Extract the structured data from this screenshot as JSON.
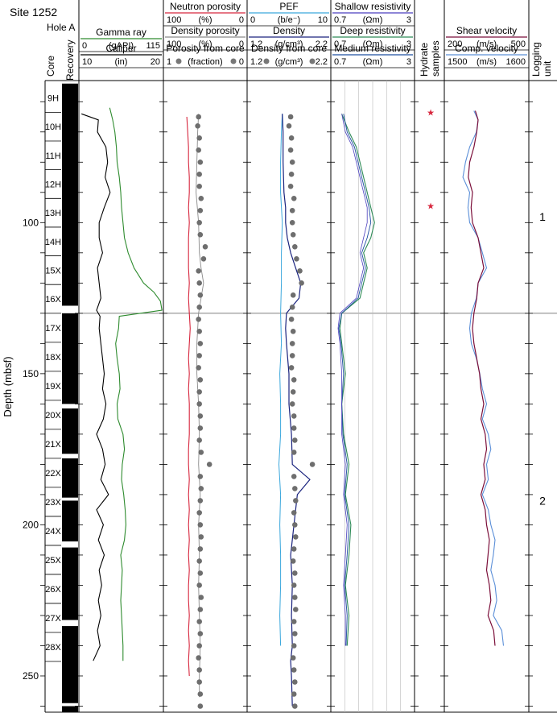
{
  "header": {
    "site": "Site 1252",
    "hole": "Hole A"
  },
  "columns": {
    "core": "Core",
    "recovery": "Recovery",
    "hydrate": [
      "Hydrate",
      "samples"
    ],
    "logging_unit": [
      "Logging",
      "unit"
    ]
  },
  "depth_axis": {
    "label": "Depth (mbsf)",
    "range": [
      53,
      262
    ],
    "ticks": [
      100,
      150,
      200,
      250
    ],
    "minor_step": 10
  },
  "track_headers": {
    "gamma": {
      "title": "Gamma ray",
      "unit": "(gAPI)",
      "min": "0",
      "max": "115",
      "color": "#2e8b2e"
    },
    "caliper": {
      "title": "Caliper",
      "unit": "(in)",
      "min": "10",
      "max": "20",
      "color": "#000000"
    },
    "neutron": {
      "title": "Neutron porosity",
      "unit": "(%)",
      "min": "100",
      "max": "0",
      "color": "#d7263d"
    },
    "density_porosity": {
      "title": "Density porosity",
      "unit": "(%)",
      "min": "100",
      "max": "0",
      "color": "#8a8a8a"
    },
    "core_porosity": {
      "title": "Porosity from core",
      "unit": "(fraction)",
      "min": "1",
      "max": "0"
    },
    "pef": {
      "title": "PEF",
      "unit": "(b/e⁻)",
      "min": "0",
      "max": "10",
      "color": "#3ba7dc"
    },
    "density": {
      "title": "Density",
      "unit": "(g/cm³)",
      "min": "1.2",
      "max": "2.2",
      "color": "#1a237e"
    },
    "core_density": {
      "title": "Density from core",
      "unit": "(g/cm³)",
      "min": "1.2",
      "max": "2.2"
    },
    "shallow_res": {
      "title": "Shallow resistivity",
      "unit": "(Ωm)",
      "min": "0.7",
      "max": "3",
      "color": "#4b3fbf"
    },
    "deep_res": {
      "title": "Deep resistivity",
      "unit": "(Ωm)",
      "min": "0.7",
      "max": "3",
      "color": "#2e8b57"
    },
    "medium_res": {
      "title": "Medium resistivity",
      "unit": "(Ωm)",
      "min": "0.7",
      "max": "3",
      "color": "#1e4fa0"
    },
    "shear": {
      "title": "Shear velocity",
      "unit": "(m/s)",
      "min": "200",
      "max": "500",
      "color": "#7b0f3a"
    },
    "comp": {
      "title": "Comp. velocity",
      "unit": "(m/s)",
      "min": "1500",
      "max": "1600",
      "color": "#5b8fd8"
    }
  },
  "cores": [
    {
      "label": "9H",
      "top": 54,
      "bottom": 63.5
    },
    {
      "label": "10H",
      "top": 63.5,
      "bottom": 73
    },
    {
      "label": "11H",
      "top": 73,
      "bottom": 82.5
    },
    {
      "label": "12H",
      "top": 82.5,
      "bottom": 92
    },
    {
      "label": "13H",
      "top": 92,
      "bottom": 101.5
    },
    {
      "label": "14H",
      "top": 101.5,
      "bottom": 111
    },
    {
      "label": "15X",
      "top": 111,
      "bottom": 120.5
    },
    {
      "label": "16X",
      "top": 120.5,
      "bottom": 130
    },
    {
      "label": "17X",
      "top": 130,
      "bottom": 139.6
    },
    {
      "label": "18X",
      "top": 139.6,
      "bottom": 149.2
    },
    {
      "label": "19X",
      "top": 149.2,
      "bottom": 158.8
    },
    {
      "label": "20X",
      "top": 158.8,
      "bottom": 168.4
    },
    {
      "label": "21X",
      "top": 168.4,
      "bottom": 178
    },
    {
      "label": "22X",
      "top": 178,
      "bottom": 187.6
    },
    {
      "label": "23X",
      "top": 187.6,
      "bottom": 197.2
    },
    {
      "label": "24X",
      "top": 197.2,
      "bottom": 206.8
    },
    {
      "label": "25X",
      "top": 206.8,
      "bottom": 216.4
    },
    {
      "label": "26X",
      "top": 216.4,
      "bottom": 226
    },
    {
      "label": "27X",
      "top": 226,
      "bottom": 235.6
    },
    {
      "label": "28X",
      "top": 235.6,
      "bottom": 245.2
    }
  ],
  "recovery_gaps": [
    [
      127.5,
      130
    ],
    [
      160,
      161.5
    ],
    [
      176.5,
      178
    ],
    [
      191,
      192
    ],
    [
      205.5,
      207.5
    ],
    [
      231.5,
      233.5
    ],
    [
      259,
      260
    ]
  ],
  "hydrate_sample_depths": [
    63.5,
    94.5
  ],
  "logging_unit_boundaries": [
    130
  ],
  "logging_units": [
    {
      "label": "1",
      "depth": 98
    },
    {
      "label": "2",
      "depth": 192
    }
  ],
  "chart_data": {
    "type": "line",
    "depth_range": [
      53,
      262
    ],
    "gamma_ray": {
      "depth": [
        62,
        66,
        70,
        75,
        80,
        85,
        90,
        95,
        100,
        105,
        110,
        115,
        120,
        123,
        126,
        129,
        131,
        135,
        140,
        145,
        150,
        155,
        160,
        165,
        170,
        175,
        180,
        185,
        190,
        195,
        200,
        205,
        210,
        215,
        220,
        225,
        230,
        235,
        240,
        245
      ],
      "values": [
        42,
        46,
        49,
        51,
        52,
        55,
        57,
        58,
        60,
        62,
        67,
        75,
        88,
        102,
        111,
        113,
        55,
        54,
        50,
        52,
        55,
        56,
        52,
        53,
        60,
        62,
        59,
        58,
        61,
        63,
        64,
        62,
        57,
        59,
        58,
        57,
        58,
        59,
        60,
        60
      ]
    },
    "caliper": {
      "depth": [
        64,
        66,
        70,
        75,
        80,
        85,
        90,
        95,
        100,
        105,
        110,
        115,
        120,
        125,
        129,
        131,
        135,
        140,
        145,
        150,
        155,
        160,
        165,
        170,
        175,
        180,
        185,
        190,
        195,
        200,
        205,
        210,
        215,
        220,
        225,
        230,
        235,
        240,
        245
      ],
      "values": [
        10.3,
        12.3,
        12.2,
        13.2,
        13.4,
        13.1,
        13.7,
        13.0,
        12.4,
        12.4,
        12.8,
        12.2,
        12.4,
        12.6,
        12.1,
        12.5,
        12.4,
        12.6,
        12.8,
        13.0,
        12.8,
        13.2,
        12.9,
        12.1,
        12.8,
        13.1,
        12.6,
        13.5,
        12.1,
        12.9,
        12.3,
        13.0,
        12.4,
        12.7,
        12.3,
        12.6,
        12.2,
        12.5,
        11.7
      ]
    },
    "neutron_porosity": {
      "depth": [
        65,
        70,
        75,
        80,
        85,
        90,
        95,
        100,
        105,
        110,
        115,
        120,
        125,
        130,
        135,
        140,
        145,
        150,
        155,
        160,
        165,
        170,
        175,
        180,
        185,
        190,
        195,
        200,
        205,
        210,
        215,
        220,
        225,
        230,
        235,
        240,
        245,
        250
      ],
      "values": [
        72,
        71,
        70,
        70,
        69,
        69,
        70,
        69,
        70,
        70,
        70,
        69,
        70,
        69,
        68,
        69,
        70,
        69,
        70,
        69,
        69,
        69,
        70,
        70,
        69,
        70,
        69,
        70,
        69,
        70,
        69,
        70,
        70,
        69,
        70,
        69,
        70,
        69
      ]
    },
    "density_porosity": {
      "depth": [
        64,
        70,
        80,
        90,
        100,
        110,
        115,
        120,
        125,
        130,
        140,
        150,
        160,
        170,
        180,
        190,
        200,
        210,
        220,
        230,
        240,
        250,
        257
      ],
      "values": [
        58,
        59,
        60,
        61,
        58,
        57,
        55,
        52,
        55,
        58,
        60,
        60,
        58,
        57,
        58,
        56,
        58,
        57,
        58,
        57,
        56,
        57,
        57
      ]
    },
    "porosity_from_core": {
      "depth": [
        65,
        68,
        72,
        76,
        80,
        84,
        88,
        92,
        96,
        100,
        104,
        108,
        112,
        116,
        120,
        124,
        128,
        132,
        136,
        140,
        144,
        148,
        152,
        156,
        160,
        164,
        168,
        172,
        176,
        180,
        184,
        188,
        192,
        196,
        200,
        204,
        208,
        212,
        216,
        220,
        224,
        228,
        232,
        236,
        240,
        244,
        248,
        252,
        256,
        260
      ],
      "values": [
        0.58,
        0.59,
        0.57,
        0.58,
        0.56,
        0.57,
        0.57,
        0.55,
        0.56,
        0.57,
        0.56,
        0.5,
        0.52,
        0.58,
        0.57,
        0.56,
        0.57,
        0.58,
        0.57,
        0.56,
        0.57,
        0.58,
        0.56,
        0.57,
        0.57,
        0.56,
        0.56,
        0.57,
        0.55,
        0.45,
        0.56,
        0.55,
        0.56,
        0.57,
        0.56,
        0.55,
        0.56,
        0.57,
        0.56,
        0.57,
        0.55,
        0.56,
        0.57,
        0.56,
        0.57,
        0.58,
        0.57,
        0.57,
        0.56,
        0.56
      ]
    },
    "pef": {
      "depth": [
        64,
        70,
        80,
        90,
        100,
        110,
        120,
        130,
        140,
        150,
        160,
        170,
        180,
        190,
        200,
        210,
        220,
        230,
        240
      ],
      "values": [
        4.2,
        4.1,
        4.0,
        4.0,
        4.2,
        4.1,
        4.1,
        4.0,
        4.1,
        3.9,
        4.0,
        4.0,
        3.8,
        4.0,
        3.9,
        4.0,
        4.0,
        3.9,
        4.0
      ]
    },
    "density": {
      "depth": [
        64,
        70,
        80,
        90,
        95,
        100,
        105,
        110,
        115,
        120,
        125,
        130,
        135,
        140,
        150,
        160,
        170,
        180,
        185,
        190,
        200,
        210,
        220,
        230,
        240,
        245,
        250,
        260
      ],
      "values": [
        1.62,
        1.63,
        1.63,
        1.64,
        1.66,
        1.66,
        1.68,
        1.72,
        1.78,
        1.84,
        1.82,
        1.67,
        1.66,
        1.67,
        1.7,
        1.7,
        1.73,
        1.74,
        1.95,
        1.8,
        1.76,
        1.72,
        1.74,
        1.73,
        1.74,
        1.72,
        1.73,
        1.74
      ]
    },
    "density_from_core": {
      "depth": [
        65,
        68,
        72,
        76,
        80,
        84,
        88,
        92,
        96,
        100,
        104,
        108,
        112,
        116,
        120,
        124,
        128,
        132,
        136,
        140,
        144,
        148,
        152,
        156,
        160,
        164,
        168,
        172,
        176,
        180,
        184,
        188,
        192,
        196,
        200,
        204,
        208,
        212,
        216,
        220,
        224,
        228,
        232,
        236,
        240,
        244,
        248,
        252,
        256,
        260
      ],
      "values": [
        1.72,
        1.7,
        1.73,
        1.72,
        1.74,
        1.73,
        1.72,
        1.76,
        1.74,
        1.74,
        1.75,
        1.77,
        1.79,
        1.83,
        1.85,
        1.75,
        1.74,
        1.73,
        1.75,
        1.74,
        1.74,
        1.73,
        1.76,
        1.75,
        1.74,
        1.76,
        1.76,
        1.77,
        1.76,
        1.98,
        1.76,
        1.77,
        1.78,
        1.76,
        1.77,
        1.78,
        1.76,
        1.75,
        1.77,
        1.76,
        1.77,
        1.78,
        1.76,
        1.77,
        1.76,
        1.75,
        1.76,
        1.77,
        1.76,
        1.77
      ]
    },
    "deep_resistivity": {
      "depth": [
        64,
        70,
        75,
        80,
        85,
        90,
        95,
        100,
        105,
        110,
        115,
        120,
        125,
        130,
        135,
        140,
        150,
        160,
        170,
        180,
        190,
        200,
        210,
        220,
        230,
        240
      ],
      "values": [
        1.0,
        1.2,
        1.4,
        1.5,
        1.6,
        1.7,
        1.8,
        1.9,
        1.8,
        1.6,
        1.7,
        1.6,
        1.5,
        1.0,
        0.95,
        1.0,
        1.1,
        1.0,
        1.05,
        1.2,
        1.1,
        1.25,
        1.2,
        1.1,
        1.2,
        1.15
      ]
    },
    "shallow_resistivity": {
      "depth": [
        64,
        70,
        75,
        80,
        85,
        90,
        95,
        100,
        105,
        110,
        115,
        120,
        125,
        130,
        135,
        140,
        150,
        160,
        170,
        180,
        190,
        200,
        210,
        220,
        230,
        240
      ],
      "values": [
        1.0,
        1.1,
        1.3,
        1.4,
        1.5,
        1.6,
        1.7,
        1.7,
        1.6,
        1.5,
        1.6,
        1.5,
        1.4,
        0.95,
        0.9,
        0.95,
        1.0,
        1.0,
        1.0,
        1.1,
        1.05,
        1.15,
        1.1,
        1.05,
        1.1,
        1.1
      ]
    },
    "medium_resistivity": {
      "depth": [
        64,
        70,
        75,
        80,
        85,
        90,
        95,
        100,
        105,
        110,
        115,
        120,
        125,
        130,
        135,
        140,
        150,
        160,
        170,
        180,
        190,
        200,
        210,
        220,
        230,
        240
      ],
      "values": [
        1.05,
        1.15,
        1.35,
        1.45,
        1.55,
        1.65,
        1.75,
        1.8,
        1.7,
        1.55,
        1.65,
        1.55,
        1.45,
        1.0,
        0.92,
        0.98,
        1.05,
        1.0,
        1.03,
        1.15,
        1.08,
        1.2,
        1.15,
        1.08,
        1.15,
        1.12
      ]
    },
    "shear_velocity": {
      "depth": [
        63,
        66,
        70,
        75,
        80,
        85,
        90,
        95,
        100,
        105,
        110,
        115,
        120,
        125,
        130,
        135,
        140,
        145,
        150,
        155,
        160,
        165,
        170,
        175,
        180,
        185,
        190,
        195,
        200,
        205,
        210,
        215,
        220,
        225,
        230,
        235,
        240
      ],
      "values": [
        310,
        320,
        315,
        305,
        290,
        285,
        300,
        295,
        300,
        320,
        330,
        340,
        320,
        315,
        305,
        300,
        305,
        315,
        325,
        330,
        340,
        330,
        345,
        350,
        340,
        345,
        330,
        345,
        350,
        360,
        355,
        350,
        360,
        365,
        355,
        375,
        380
      ]
    },
    "comp_velocity": {
      "depth": [
        63,
        66,
        70,
        75,
        80,
        85,
        90,
        95,
        100,
        105,
        110,
        115,
        120,
        125,
        130,
        135,
        140,
        145,
        150,
        155,
        160,
        165,
        170,
        175,
        180,
        185,
        190,
        195,
        200,
        205,
        210,
        215,
        220,
        225,
        230,
        235,
        240
      ],
      "values": [
        1535,
        1540,
        1538,
        1530,
        1525,
        1522,
        1530,
        1528,
        1530,
        1540,
        1545,
        1550,
        1540,
        1538,
        1532,
        1530,
        1532,
        1538,
        1542,
        1545,
        1550,
        1545,
        1552,
        1555,
        1550,
        1552,
        1545,
        1552,
        1555,
        1560,
        1558,
        1555,
        1560,
        1562,
        1558,
        1568,
        1570
      ]
    }
  }
}
